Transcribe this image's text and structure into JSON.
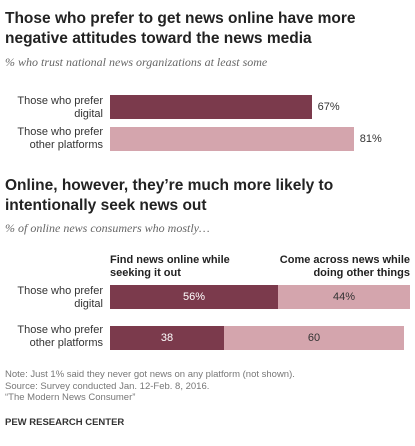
{
  "chart_data": [
    {
      "type": "bar",
      "orientation": "horizontal",
      "title": "Those who prefer to get news online have more negative attitudes toward the news media",
      "subtitle": "% who trust national news organizations at least some",
      "categories": [
        "Those who prefer digital",
        "Those who prefer other platforms"
      ],
      "values": [
        67,
        81
      ],
      "value_labels": [
        "67%",
        "81%"
      ],
      "colors": [
        "#7b3a4c",
        "#d4a5ad"
      ],
      "xlim": [
        0,
        100
      ]
    },
    {
      "type": "bar",
      "orientation": "horizontal",
      "stacked": true,
      "title": "Online, however, they’re much more likely to intentionally seek news out",
      "subtitle": "% of online news consumers who mostly…",
      "categories": [
        "Those who prefer digital",
        "Those who prefer other platforms"
      ],
      "series": [
        {
          "name": "Find news online while seeking it out",
          "values": [
            56,
            38
          ],
          "labels": [
            "56%",
            "38"
          ],
          "color": "#7b3a4c"
        },
        {
          "name": "Come across news while doing other things",
          "values": [
            44,
            60
          ],
          "labels": [
            "44%",
            "60"
          ],
          "color": "#d4a5ad"
        }
      ],
      "xlim": [
        0,
        100
      ]
    }
  ],
  "chart1_title_line1": "Those who prefer to get news online have more",
  "chart1_title_line2": "negative attitudes toward the news media",
  "chart2_title_line1": "Online, however, they’re much more likely to",
  "chart2_title_line2": "intentionally seek news out",
  "label_digital_line1": "Those who prefer",
  "label_digital_line2": "digital",
  "label_other_line1": "Those who prefer",
  "label_other_line2": "other platforms",
  "col_head_seek_line1": "Find news online while",
  "col_head_seek_line2": "seeking it out",
  "col_head_across_line1": "Come across news while",
  "col_head_across_line2": "doing other things",
  "notes": {
    "note": "Note: Just 1% said they never got news on any platform (not shown).",
    "source": "Source: Survey conducted Jan. 12-Feb. 8, 2016.",
    "report": "“The Modern News Consumer”"
  },
  "brand": "PEW RESEARCH CENTER"
}
